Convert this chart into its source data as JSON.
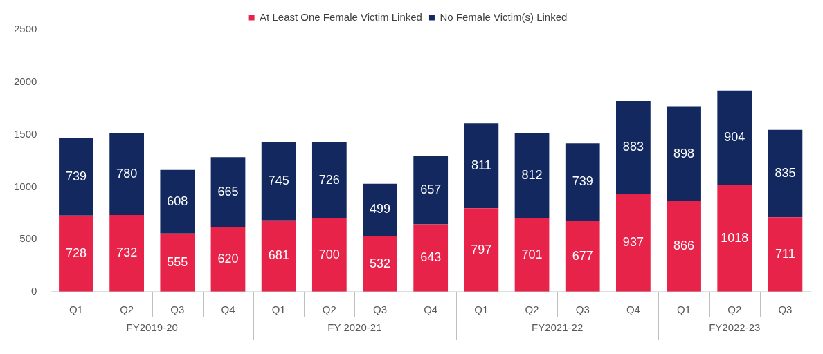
{
  "chart_data": {
    "type": "bar",
    "stacked": true,
    "categories": [
      "Q1",
      "Q2",
      "Q3",
      "Q4",
      "Q1",
      "Q2",
      "Q3",
      "Q4",
      "Q1",
      "Q2",
      "Q3",
      "Q4",
      "Q1",
      "Q2",
      "Q3"
    ],
    "series": [
      {
        "name": "At Least One Female Victim Linked",
        "color": "#e8234a",
        "values": [
          728,
          732,
          555,
          620,
          681,
          700,
          532,
          643,
          797,
          701,
          677,
          937,
          866,
          1018,
          711
        ]
      },
      {
        "name": "No Female Victim(s) Linked",
        "color": "#12285f",
        "values": [
          739,
          780,
          608,
          665,
          745,
          726,
          499,
          657,
          811,
          812,
          739,
          883,
          898,
          904,
          835
        ]
      }
    ],
    "annotations": [
      "FY2019-20",
      "FY 2020-21",
      "FY2021-22",
      "FY2022-23"
    ],
    "ylim": [
      0,
      2500
    ],
    "yticks": [
      0,
      500,
      1000,
      1500,
      2000,
      2500
    ],
    "grid": false,
    "legend": "top",
    "data_labels": true
  }
}
